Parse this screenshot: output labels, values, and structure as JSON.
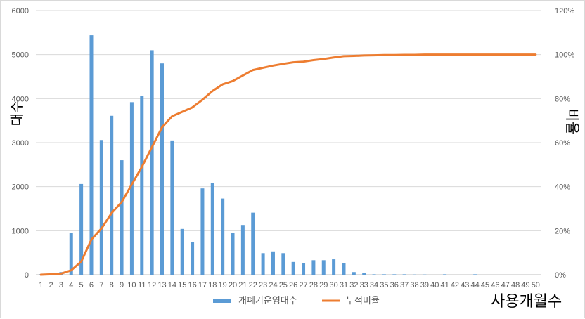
{
  "chart_data": {
    "type": "bar+line",
    "x_label": "사용개월수",
    "y_left_label": "대수",
    "y_right_label": "비율",
    "y_left_ticks": [
      "0",
      "1000",
      "2000",
      "3000",
      "4000",
      "5000",
      "6000"
    ],
    "y_right_ticks": [
      "0%",
      "20%",
      "40%",
      "60%",
      "80%",
      "100%",
      "120%"
    ],
    "ylim_left": [
      0,
      6000
    ],
    "ylim_right": [
      0,
      1.2
    ],
    "grid": "horizontal",
    "legend_position": "bottom",
    "categories": [
      "1",
      "2",
      "3",
      "4",
      "5",
      "6",
      "7",
      "8",
      "9",
      "10",
      "11",
      "12",
      "13",
      "14",
      "15",
      "16",
      "17",
      "18",
      "19",
      "20",
      "21",
      "22",
      "23",
      "24",
      "25",
      "26",
      "27",
      "28",
      "29",
      "30",
      "31",
      "32",
      "33",
      "34",
      "35",
      "36",
      "37",
      "38",
      "39",
      "40",
      "41",
      "42",
      "43",
      "44",
      "45",
      "46",
      "47",
      "48",
      "49",
      "50"
    ],
    "series": [
      {
        "name": "개폐기운영대수",
        "type": "bar",
        "axis": "left",
        "color": "#5b9bd5",
        "values": [
          10,
          40,
          60,
          950,
          2060,
          5440,
          3060,
          3610,
          2600,
          3920,
          4060,
          5100,
          4800,
          3050,
          1040,
          750,
          1960,
          2090,
          1730,
          950,
          1130,
          1410,
          490,
          530,
          490,
          290,
          260,
          330,
          330,
          350,
          260,
          60,
          40,
          10,
          10,
          10,
          10,
          5,
          5,
          0,
          10,
          0,
          0,
          10,
          0,
          0,
          0,
          0,
          0,
          0
        ]
      },
      {
        "name": "누적비율",
        "type": "line",
        "axis": "right",
        "color": "#ed7d31",
        "values": [
          0.0,
          0.002,
          0.005,
          0.02,
          0.06,
          0.16,
          0.21,
          0.28,
          0.33,
          0.41,
          0.49,
          0.58,
          0.67,
          0.72,
          0.74,
          0.76,
          0.795,
          0.835,
          0.865,
          0.88,
          0.905,
          0.93,
          0.94,
          0.95,
          0.958,
          0.965,
          0.968,
          0.975,
          0.98,
          0.987,
          0.993,
          0.994,
          0.996,
          0.997,
          0.998,
          0.998,
          0.999,
          0.999,
          1.0,
          1.0,
          1.0,
          1.0,
          1.0,
          1.0,
          1.0,
          1.0,
          1.0,
          1.0,
          1.0,
          1.0
        ]
      }
    ]
  }
}
